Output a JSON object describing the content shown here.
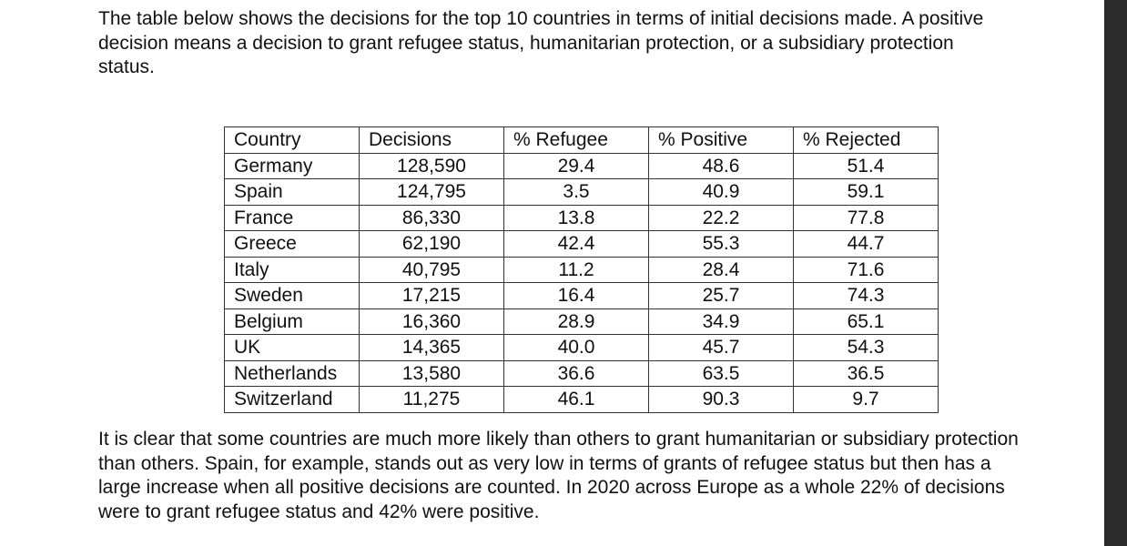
{
  "intro": "The table below shows the decisions for the top 10 countries in terms of initial decisions made. A positive decision means a decision to grant refugee status, humanitarian protection, or a subsidiary protection status.",
  "table": {
    "headers": [
      "Country",
      "Decisions",
      "% Refugee",
      "% Positive",
      "% Rejected"
    ],
    "rows": [
      [
        "Germany",
        "128,590",
        "29.4",
        "48.6",
        "51.4"
      ],
      [
        "Spain",
        "124,795",
        "3.5",
        "40.9",
        "59.1"
      ],
      [
        "France",
        "86,330",
        "13.8",
        "22.2",
        "77.8"
      ],
      [
        "Greece",
        "62,190",
        "42.4",
        "55.3",
        "44.7"
      ],
      [
        "Italy",
        "40,795",
        "11.2",
        "28.4",
        "71.6"
      ],
      [
        "Sweden",
        "17,215",
        "16.4",
        "25.7",
        "74.3"
      ],
      [
        "Belgium",
        "16,360",
        "28.9",
        "34.9",
        "65.1"
      ],
      [
        "UK",
        "14,365",
        "40.0",
        "45.7",
        "54.3"
      ],
      [
        "Netherlands",
        "13,580",
        "36.6",
        "63.5",
        "36.5"
      ],
      [
        "Switzerland",
        "11,275",
        "46.1",
        "90.3",
        "9.7"
      ]
    ]
  },
  "outro": "It is clear that some countries are much more likely than others to grant humanitarian or subsidiary protection than others. Spain, for example, stands out as very low in terms of grants of refugee status but then has a large increase when all positive decisions are counted. In 2020 across Europe as a whole 22% of decisions were to grant refugee status and 42% were positive."
}
